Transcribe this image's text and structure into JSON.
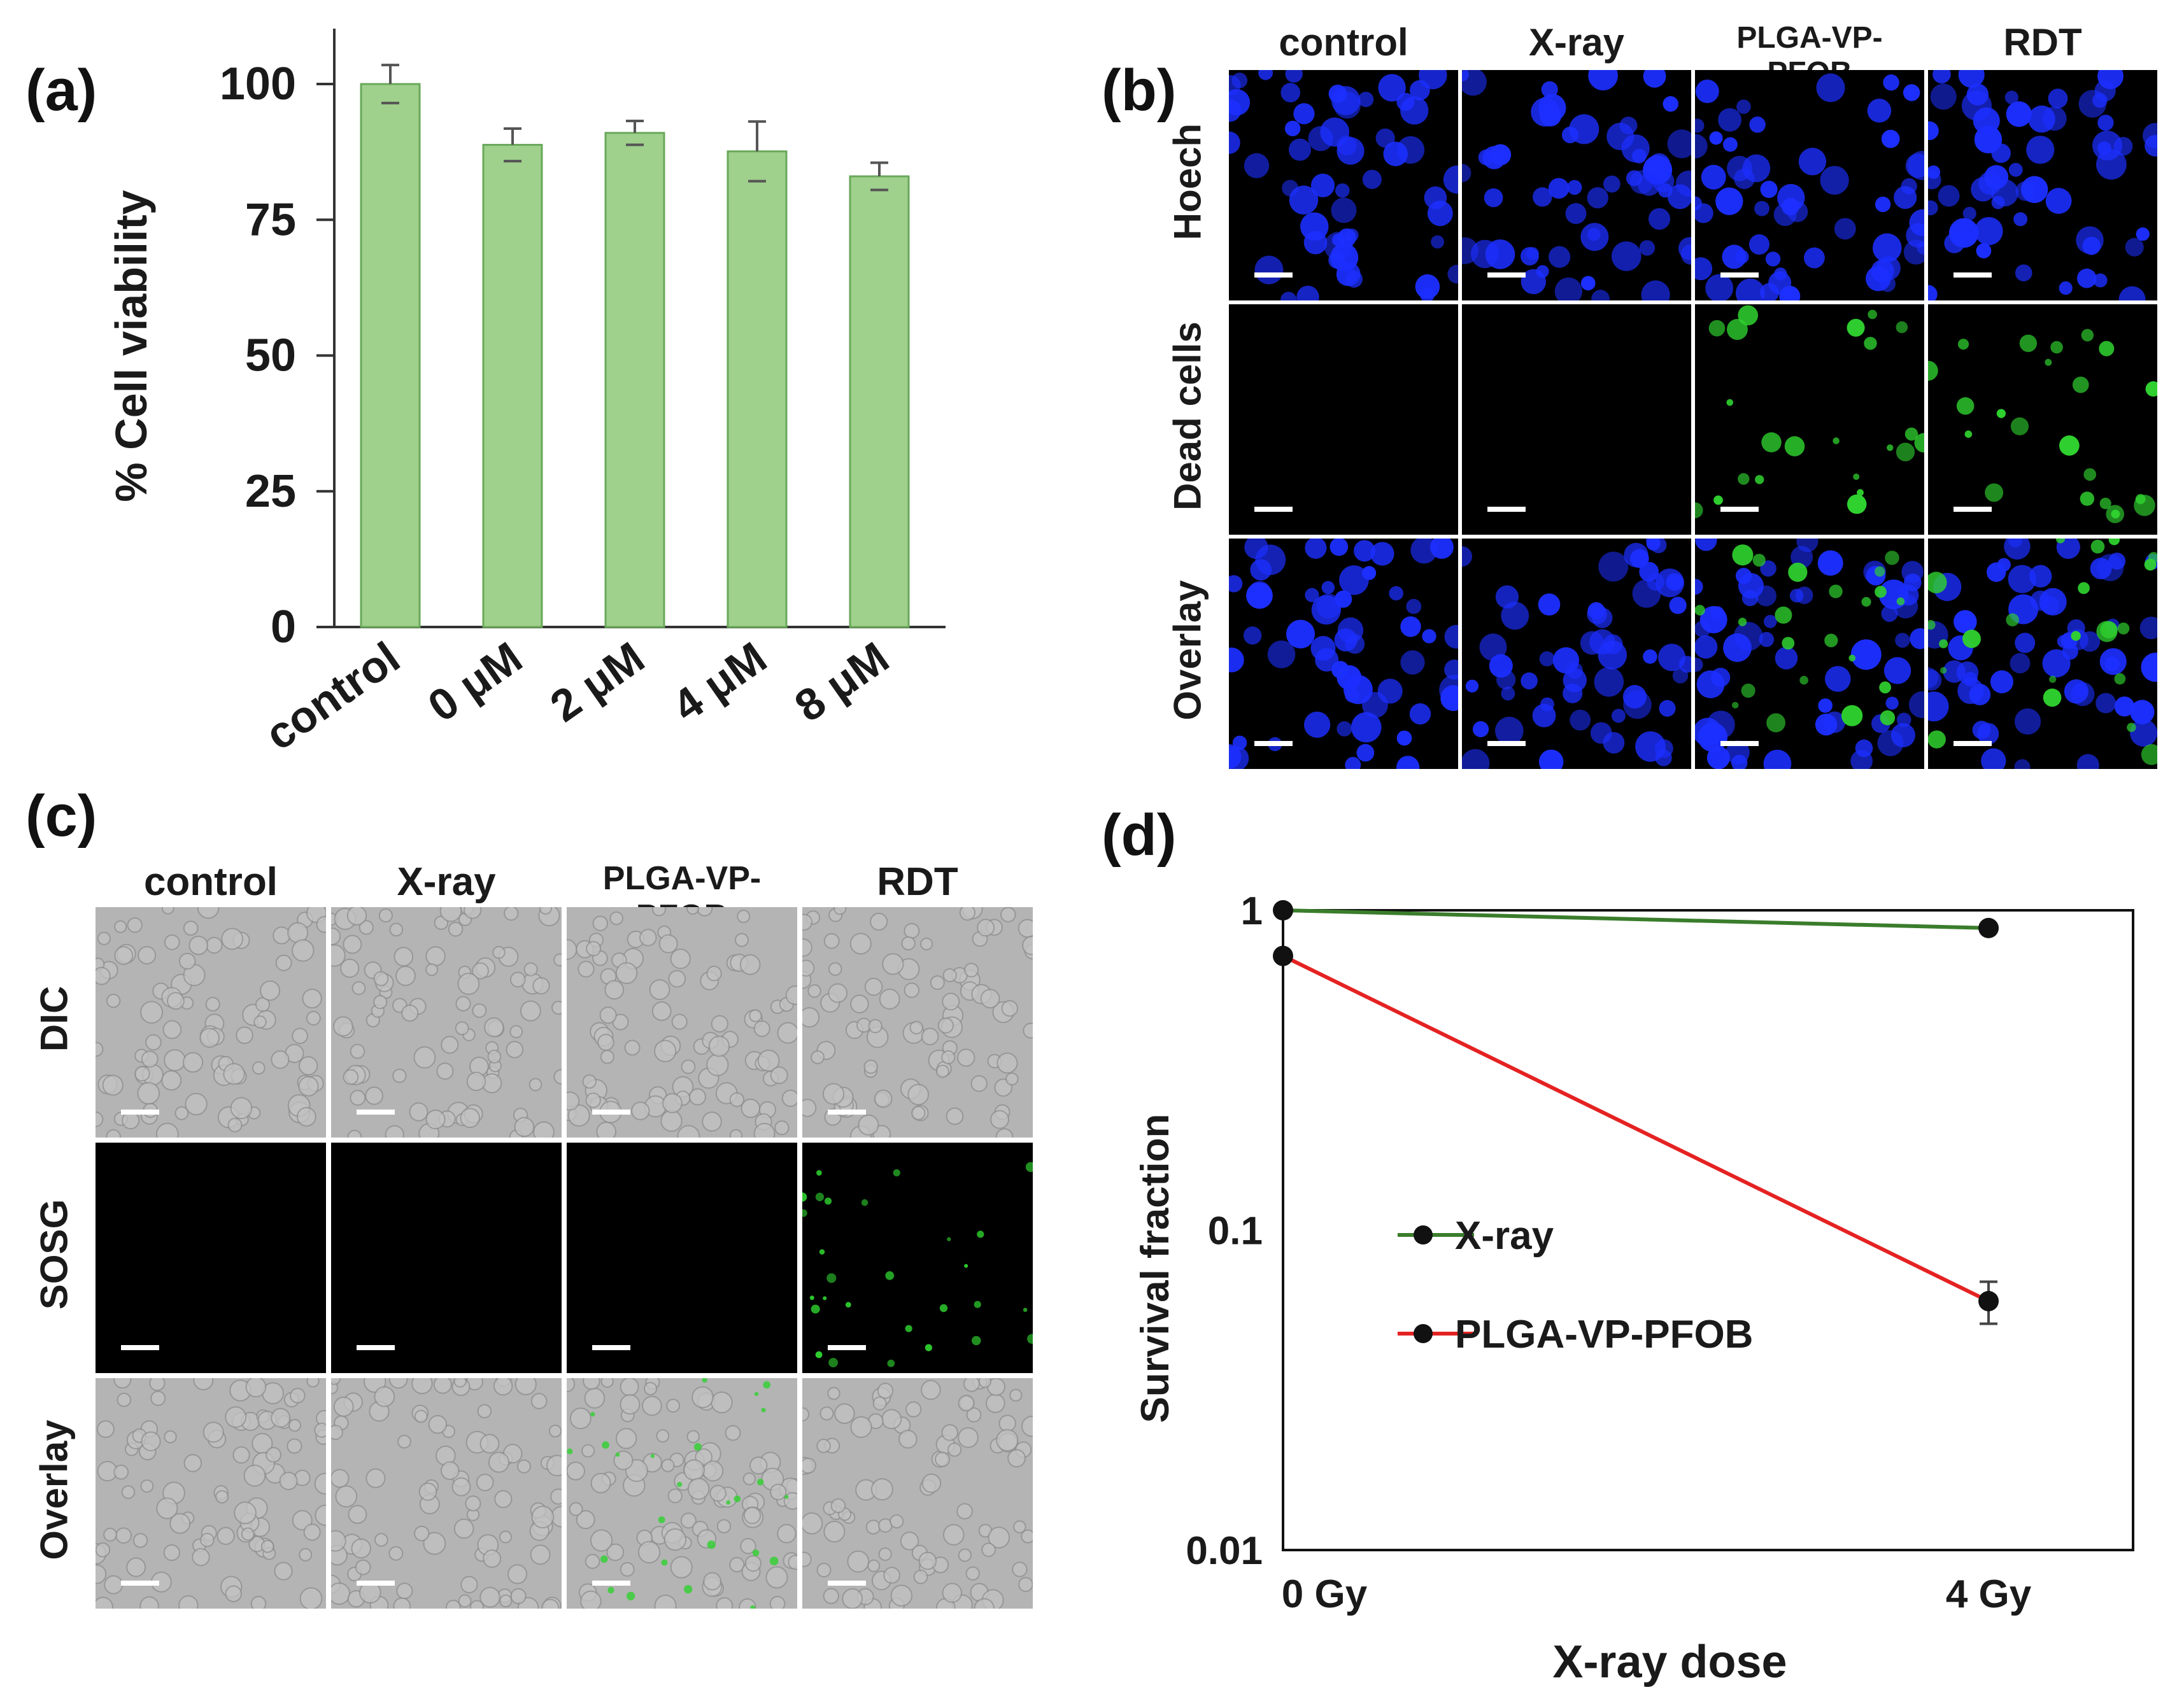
{
  "panels": {
    "a": {
      "label": "(a)"
    },
    "b": {
      "label": "(b)"
    },
    "c": {
      "label": "(c)"
    },
    "d": {
      "label": "(d)"
    }
  },
  "chart_data": [
    {
      "id": "a",
      "type": "bar",
      "title": "",
      "ylabel": "% Cell viability",
      "xlabel": "",
      "categories": [
        "control",
        "0 μM",
        "2 μM",
        "4 μM",
        "8 μM"
      ],
      "values": [
        100,
        88.8,
        91.0,
        87.6,
        83.0
      ],
      "errors": [
        3.5,
        3.0,
        2.2,
        5.5,
        2.5
      ],
      "ylim": [
        0,
        100
      ],
      "yticks": [
        "0",
        "25",
        "50",
        "75",
        "100"
      ],
      "bar_color": "#9fd08c",
      "bar_edge": "#6aa85a"
    },
    {
      "id": "d",
      "type": "line",
      "title": "",
      "ylabel": "Survival fraction",
      "xlabel": "X-ray dose",
      "yscale": "log",
      "ylim": [
        0.01,
        1
      ],
      "yticks": [
        "0.01",
        "0.1",
        "1"
      ],
      "categories": [
        "0 Gy",
        "4 Gy"
      ],
      "series": [
        {
          "name": "X-ray",
          "values": [
            1.0,
            0.88
          ],
          "errors": [
            0.0,
            0.0
          ],
          "color": "#3a7d2c"
        },
        {
          "name": "PLGA-VP-PFOB",
          "values": [
            0.72,
            0.06
          ],
          "errors": [
            0.0,
            0.009
          ],
          "color": "#e52222"
        }
      ]
    }
  ],
  "fluor_b": {
    "columns": [
      "control",
      "X-ray",
      "PLGA-VP-PFOB",
      "RDT"
    ],
    "rows": [
      "Hoech",
      "Dead cells",
      "Overlay"
    ]
  },
  "micro_c": {
    "columns": [
      "control",
      "X-ray",
      "PLGA-VP-PFOB",
      "RDT"
    ],
    "rows": [
      "DIC",
      "SOSG",
      "Overlay"
    ]
  },
  "colors": {
    "hoechst": "#1c2fff",
    "dead": "#2fd12f",
    "dic_bg": "#b4b4b4",
    "black": "#000000"
  }
}
